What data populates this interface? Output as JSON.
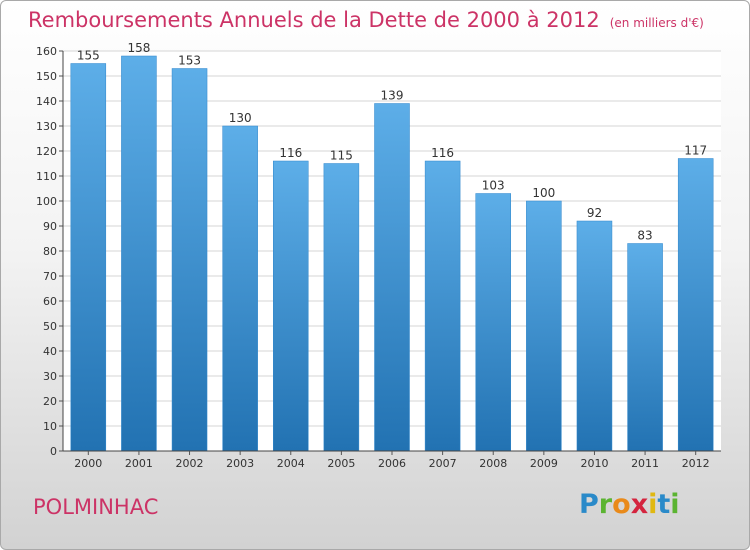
{
  "chart_data": {
    "type": "bar",
    "title": "Remboursements Annuels de la Dette de 2000 à 2012",
    "subtitle": "(en milliers d'€)",
    "categories": [
      "2000",
      "2001",
      "2002",
      "2003",
      "2004",
      "2005",
      "2006",
      "2007",
      "2008",
      "2009",
      "2010",
      "2011",
      "2012"
    ],
    "values": [
      155,
      158,
      153,
      130,
      116,
      115,
      139,
      116,
      103,
      100,
      92,
      83,
      117
    ],
    "ylim": [
      0,
      160
    ],
    "yticks": [
      0,
      10,
      20,
      30,
      40,
      50,
      60,
      70,
      80,
      90,
      100,
      110,
      120,
      130,
      140,
      150,
      160
    ],
    "grid": true,
    "legend": "none",
    "bar_color_top": "#5daee8",
    "bar_color_bottom": "#2272b2"
  },
  "footer": {
    "city": "POLMINHAC",
    "logo": [
      "P",
      "r",
      "o",
      "x",
      "i",
      "t",
      "i"
    ]
  }
}
